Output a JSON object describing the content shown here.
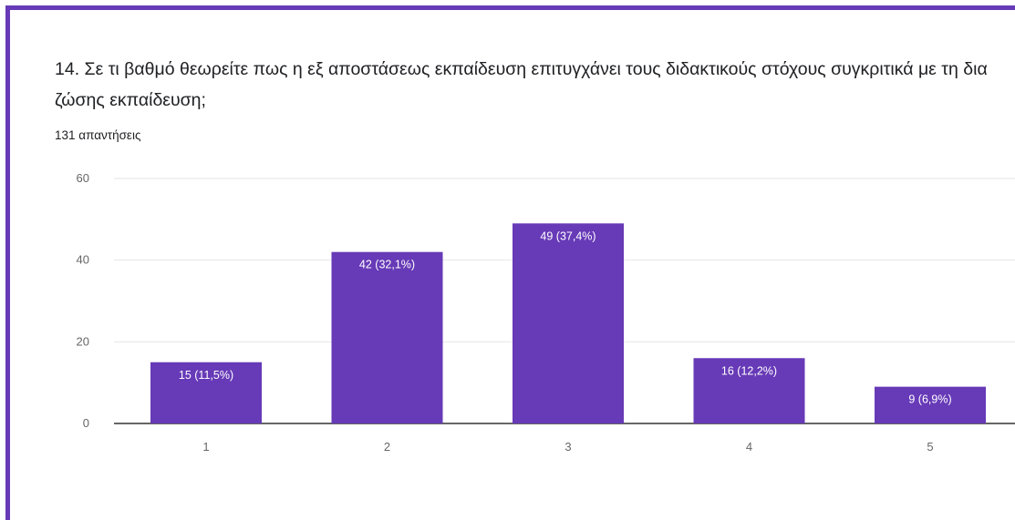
{
  "question": {
    "title": "14. Σε τι βαθμό θεωρείτε πως η εξ αποστάσεως εκπαίδευση επιτυγχάνει τους διδακτικούς στόχους συγκριτικά με τη δια ζώσης εκπαίδευση;",
    "responses": "131 απαντήσεις"
  },
  "colors": {
    "frame": "#673ab7",
    "bar": "#673ab7"
  },
  "chart_data": {
    "type": "bar",
    "categories": [
      "1",
      "2",
      "3",
      "4",
      "5"
    ],
    "values": [
      15,
      42,
      49,
      16,
      9
    ],
    "data_labels": [
      "15 (11,5%)",
      "42 (32,1%)",
      "49 (37,4%)",
      "16 (12,2%)",
      "9 (6,9%)"
    ],
    "yticks": [
      "0",
      "20",
      "40",
      "60"
    ],
    "ylim": [
      0,
      60
    ],
    "grid": true,
    "legend": "none"
  }
}
